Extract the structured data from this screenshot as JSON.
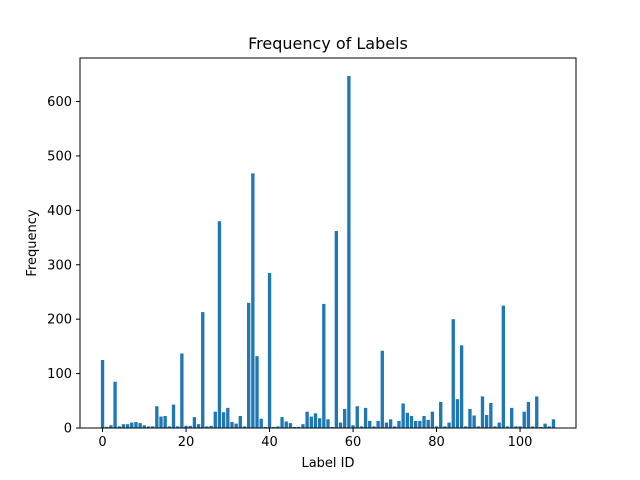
{
  "chart_data": {
    "type": "bar",
    "title": "Frequency of Labels",
    "xlabel": "Label ID",
    "ylabel": "Frequency",
    "xlim": [
      -5.4,
      113.4
    ],
    "ylim": [
      0,
      680
    ],
    "xticks": [
      0,
      20,
      40,
      60,
      80,
      100
    ],
    "yticks": [
      0,
      100,
      200,
      300,
      400,
      500,
      600
    ],
    "grid": false,
    "legend": "none",
    "bar_color": "#1f77b4",
    "x": [
      0,
      1,
      2,
      3,
      4,
      5,
      6,
      7,
      8,
      9,
      10,
      11,
      12,
      13,
      14,
      15,
      16,
      17,
      18,
      19,
      20,
      21,
      22,
      23,
      24,
      25,
      26,
      27,
      28,
      29,
      30,
      31,
      32,
      33,
      34,
      35,
      36,
      37,
      38,
      39,
      40,
      41,
      42,
      43,
      44,
      45,
      46,
      47,
      48,
      49,
      50,
      51,
      52,
      53,
      54,
      55,
      56,
      57,
      58,
      59,
      60,
      61,
      62,
      63,
      64,
      65,
      66,
      67,
      68,
      69,
      70,
      71,
      72,
      73,
      74,
      75,
      76,
      77,
      78,
      79,
      80,
      81,
      82,
      83,
      84,
      85,
      86,
      87,
      88,
      89,
      90,
      91,
      92,
      93,
      94,
      95,
      96,
      97,
      98,
      99,
      100,
      101,
      102,
      103,
      104,
      105,
      106,
      107,
      108
    ],
    "values": [
      125,
      2,
      5,
      85,
      3,
      7,
      7,
      10,
      11,
      9,
      5,
      3,
      3,
      40,
      21,
      22,
      3,
      43,
      3,
      137,
      4,
      4,
      20,
      7,
      213,
      3,
      4,
      30,
      380,
      29,
      37,
      11,
      8,
      22,
      3,
      230,
      468,
      132,
      17,
      2,
      285,
      2,
      3,
      20,
      12,
      9,
      2,
      2,
      7,
      30,
      21,
      27,
      18,
      228,
      16,
      2,
      362,
      10,
      35,
      647,
      5,
      40,
      3,
      37,
      13,
      3,
      13,
      142,
      10,
      16,
      3,
      13,
      45,
      28,
      22,
      13,
      13,
      22,
      15,
      30,
      3,
      48,
      3,
      10,
      200,
      53,
      152,
      3,
      35,
      23,
      3,
      58,
      24,
      46,
      3,
      10,
      225,
      3,
      37,
      3,
      3,
      30,
      48,
      3,
      58,
      2,
      8,
      3,
      16
    ]
  }
}
